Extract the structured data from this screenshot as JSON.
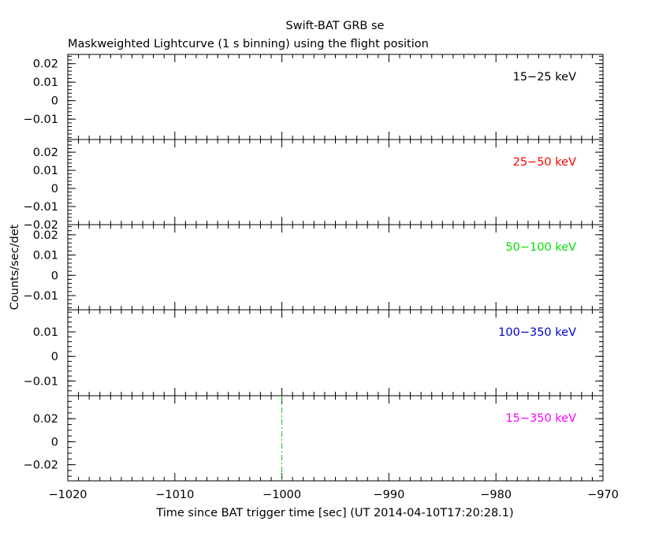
{
  "chart_data": {
    "type": "line",
    "title": "Swift-BAT GRB se",
    "subtitle": "Maskweighted Lightcurve (1 s binning) using the flight position",
    "xlabel": "Time since BAT trigger time [sec] (UT 2014-04-10T17:20:28.1)",
    "ylabel": "Counts/sec/det",
    "xlim": [
      -1020,
      -970
    ],
    "x_ticks": [
      -1020,
      -1010,
      -1000,
      -990,
      -980,
      -970
    ],
    "x_tick_labels": [
      "−1020",
      "−1010",
      "−1000",
      "−990",
      "−980",
      "−970"
    ],
    "trigger_marker_x": -1000,
    "panels": [
      {
        "label": "15−25 keV",
        "color": "#000000",
        "ylim": [
          -0.021,
          0.025
        ],
        "y_ticks": [
          0.02,
          0.01,
          0,
          -0.01
        ],
        "y_tick_labels": [
          "0.02",
          "0.01",
          "0",
          "−0.01"
        ],
        "values": []
      },
      {
        "label": "25−50 keV",
        "color": "#ff0000",
        "ylim": [
          -0.02,
          0.027
        ],
        "y_ticks": [
          0.02,
          0.01,
          0,
          -0.01,
          -0.02
        ],
        "y_tick_labels": [
          "0.02",
          "0.01",
          "0",
          "−0.01",
          "−0.02"
        ],
        "values": []
      },
      {
        "label": "50−100 keV",
        "color": "#00e000",
        "ylim": [
          -0.017,
          0.025
        ],
        "y_ticks": [
          0.02,
          0.01,
          0,
          -0.01
        ],
        "y_tick_labels": [
          "0.02",
          "0.01",
          "0",
          "−0.01"
        ],
        "values": []
      },
      {
        "label": "100−350 keV",
        "color": "#0000cc",
        "ylim": [
          -0.016,
          0.019
        ],
        "y_ticks": [
          0.01,
          0,
          -0.01
        ],
        "y_tick_labels": [
          "0.01",
          "0",
          "−0.01"
        ],
        "values": []
      },
      {
        "label": "15−350 keV",
        "color": "#ff00ff",
        "ylim": [
          -0.034,
          0.04
        ],
        "y_ticks": [
          0.02,
          0,
          -0.02
        ],
        "y_tick_labels": [
          "0.02",
          "0",
          "−0.02"
        ],
        "values": []
      }
    ]
  }
}
